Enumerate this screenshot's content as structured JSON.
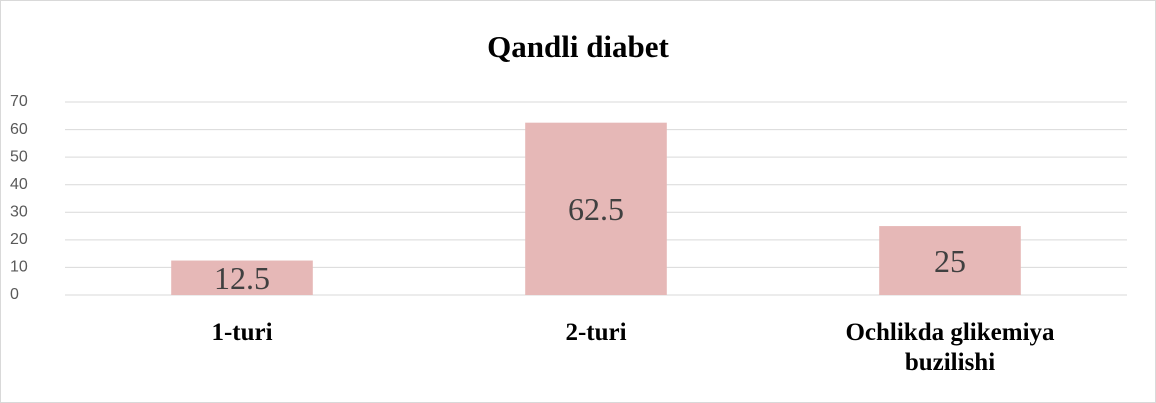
{
  "chart_data": {
    "type": "bar",
    "title": "Qandli diabet",
    "categories": [
      "1-turi",
      "2-turi",
      "Ochlikda glikemiya buzilishi"
    ],
    "values": [
      12.5,
      62.5,
      25
    ],
    "color": "#e6b8b7",
    "ylim": [
      0,
      70
    ],
    "yticks": [
      0,
      10,
      20,
      30,
      40,
      50,
      60,
      70
    ],
    "grid": true
  }
}
